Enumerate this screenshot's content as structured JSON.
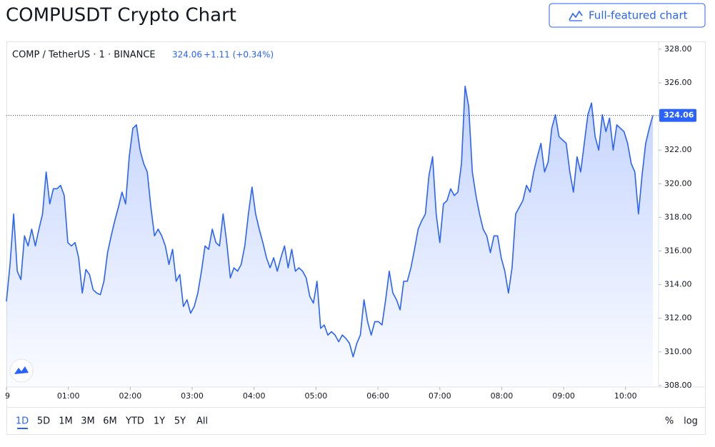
{
  "page_title": "COMPUSDT Crypto Chart",
  "button": "Full-featured chart",
  "legend": {
    "symbol": "COMP / TetherUS · 1 · BINANCE",
    "change": "+1.11 (+0.34%)"
  },
  "ranges": [
    "1D",
    "5D",
    "1M",
    "3M",
    "6M",
    "YTD",
    "1Y",
    "5Y",
    "All"
  ],
  "scale_buttons": [
    "%",
    "log"
  ],
  "chart_data": {
    "type": "area",
    "last_price": 324.06,
    "grid": false,
    "xlim": [
      0,
      632
    ],
    "xticks": [
      {
        "value": 0,
        "label": "9"
      },
      {
        "value": 60,
        "label": "01:00"
      },
      {
        "value": 120,
        "label": "02:00"
      },
      {
        "value": 180,
        "label": "03:00"
      },
      {
        "value": 240,
        "label": "04:00"
      },
      {
        "value": 300,
        "label": "05:00"
      },
      {
        "value": 360,
        "label": "06:00"
      },
      {
        "value": 420,
        "label": "07:00"
      },
      {
        "value": 480,
        "label": "08:00"
      },
      {
        "value": 540,
        "label": "09:00"
      },
      {
        "value": 600,
        "label": "10:00"
      }
    ],
    "ylim": [
      307.91,
      328.42
    ],
    "yticks": [
      {
        "value": 328,
        "label": "328.00"
      },
      {
        "value": 326,
        "label": "326.00"
      },
      {
        "value": 324,
        "label": "324.00"
      },
      {
        "value": 322,
        "label": "322.00"
      },
      {
        "value": 320,
        "label": "320.00"
      },
      {
        "value": 318,
        "label": "318.00"
      },
      {
        "value": 316,
        "label": "316.00"
      },
      {
        "value": 314,
        "label": "314.00"
      },
      {
        "value": 312,
        "label": "312.00"
      },
      {
        "value": 310,
        "label": "310.00"
      },
      {
        "value": 308,
        "label": "308.00"
      }
    ],
    "x": [
      0,
      3.5,
      7,
      10.5,
      14,
      17.5,
      21,
      24.5,
      28,
      31.5,
      35,
      38.5,
      42,
      45.5,
      49,
      52.5,
      56,
      59.5,
      63,
      66.5,
      70,
      73.5,
      77,
      80.5,
      84,
      87.5,
      91,
      94.5,
      98,
      101.5,
      105,
      108.5,
      112,
      115.5,
      119,
      122.5,
      126,
      129.5,
      133,
      136.5,
      140,
      143.5,
      147,
      150.5,
      154,
      157.5,
      161,
      164.5,
      168,
      171.5,
      175,
      178.5,
      182,
      185.5,
      189,
      192.5,
      196,
      199.5,
      203,
      206.5,
      210,
      213.5,
      217,
      220.5,
      224,
      227.5,
      231,
      234.5,
      238,
      241.5,
      245,
      248.5,
      252,
      255.5,
      259,
      262.5,
      266,
      269.5,
      273,
      276.5,
      280,
      283.5,
      287,
      290.5,
      294,
      297.5,
      301,
      304.5,
      308,
      311.5,
      315,
      318.5,
      322,
      325.5,
      329,
      332.5,
      336,
      339.5,
      343,
      346.5,
      350,
      353.5,
      357,
      360.5,
      364,
      367.5,
      371,
      374.5,
      378,
      381.5,
      385,
      388.5,
      392,
      395.5,
      399,
      402.5,
      406,
      409.5,
      413,
      416.5,
      420,
      423.5,
      427,
      430.5,
      434,
      437.5,
      441,
      444.5,
      448,
      451.5,
      455,
      458.5,
      462,
      465.5,
      469,
      472.5,
      476,
      479.5,
      483,
      486.5,
      490,
      493.5,
      497,
      500.5,
      504,
      507.5,
      511,
      514.5,
      518,
      521.5,
      525,
      528.5,
      532,
      535.5,
      539,
      542.5,
      546,
      549.5,
      553,
      556.5,
      560,
      563.5,
      567,
      570.5,
      574,
      577.5,
      581,
      584.5,
      588,
      591.5,
      595,
      598.5,
      602,
      605.5,
      609,
      612.5,
      616,
      619.5,
      623,
      626.5
    ],
    "series": [
      {
        "name": "COMPUSDT",
        "color": "#2962ff",
        "values": [
          313.0,
          315.2,
          318.2,
          314.8,
          314.3,
          316.9,
          316.3,
          317.3,
          316.3,
          317.3,
          318.2,
          320.7,
          318.8,
          319.7,
          319.7,
          319.9,
          319.3,
          316.5,
          316.3,
          316.5,
          315.6,
          313.5,
          314.9,
          314.6,
          313.7,
          313.5,
          313.4,
          314.2,
          315.9,
          316.9,
          317.8,
          318.6,
          319.5,
          318.8,
          321.6,
          323.3,
          323.5,
          322.0,
          321.2,
          320.7,
          318.6,
          316.9,
          317.3,
          316.9,
          316.3,
          315.2,
          316.1,
          314.2,
          314.6,
          312.7,
          313.1,
          312.3,
          312.7,
          313.5,
          314.8,
          316.3,
          316.1,
          317.3,
          316.5,
          316.3,
          318.2,
          316.5,
          314.4,
          315.0,
          314.8,
          315.2,
          316.3,
          318.2,
          319.8,
          318.2,
          317.3,
          316.5,
          315.6,
          315.0,
          315.6,
          314.8,
          315.6,
          316.3,
          315.0,
          316.1,
          314.8,
          315.0,
          314.8,
          314.4,
          313.3,
          312.9,
          314.2,
          311.4,
          311.6,
          311.0,
          311.2,
          311.0,
          310.6,
          311.0,
          310.8,
          310.5,
          309.7,
          310.5,
          311.0,
          313.1,
          311.8,
          311.0,
          311.8,
          311.8,
          311.6,
          313.1,
          314.8,
          313.5,
          313.1,
          312.5,
          314.2,
          314.2,
          315.0,
          316.1,
          317.3,
          317.8,
          318.2,
          320.5,
          321.6,
          318.2,
          316.5,
          318.8,
          319.0,
          319.7,
          319.3,
          319.5,
          321.2,
          325.8,
          324.6,
          320.7,
          319.3,
          318.2,
          317.3,
          316.9,
          315.9,
          316.9,
          316.9,
          315.6,
          314.8,
          313.5,
          315.0,
          318.2,
          318.6,
          319.0,
          319.9,
          319.5,
          320.7,
          321.6,
          322.4,
          320.7,
          321.3,
          323.3,
          324.1,
          322.8,
          322.6,
          322.4,
          320.7,
          319.5,
          321.6,
          320.7,
          322.4,
          324.1,
          324.8,
          322.8,
          322.0,
          324.1,
          323.1,
          323.9,
          322.0,
          323.5,
          323.3,
          323.1,
          322.4,
          321.2,
          320.7,
          318.2,
          320.5,
          322.4,
          323.3,
          324.06
        ]
      }
    ]
  }
}
